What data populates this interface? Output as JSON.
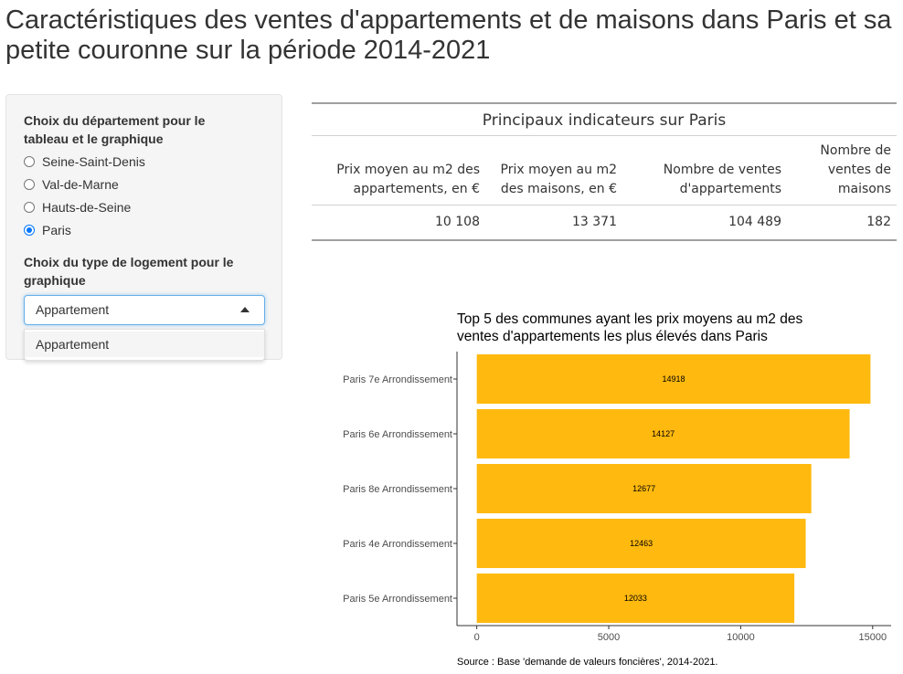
{
  "app": {
    "title": "Caractéristiques des ventes d'appartements et de maisons dans Paris et sa petite couronne sur la période 2014-2021"
  },
  "sidebar": {
    "departement_label": "Choix du département pour le tableau et le graphique",
    "departement_options": [
      {
        "label": "Seine-Saint-Denis",
        "checked": false
      },
      {
        "label": "Val-de-Marne",
        "checked": false
      },
      {
        "label": "Hauts-de-Seine",
        "checked": false
      },
      {
        "label": "Paris",
        "checked": true
      }
    ],
    "logement_label": "Choix du type de logement pour le graphique",
    "logement_selected": "Appartement",
    "logement_dropdown_options": [
      "Appartement"
    ]
  },
  "table": {
    "caption": "Principaux indicateurs sur Paris",
    "headers": [
      "Prix moyen au m2 des appartements, en €",
      "Prix moyen au m2 des maisons, en €",
      "Nombre de ventes d'appartements",
      "Nombre de ventes de maisons"
    ],
    "row": [
      "10 108",
      "13 371",
      "104 489",
      "182"
    ]
  },
  "chart_data": {
    "type": "bar",
    "orientation": "horizontal",
    "title": "Top 5 des communes ayant les prix moyens au m2 des ventes d'appartements les plus élevés dans Paris",
    "title_lines": [
      "Top 5 des communes ayant les prix moyens au m2 des",
      "ventes d'appartements les plus élevés dans Paris"
    ],
    "categories": [
      "Paris 7e Arrondissement",
      "Paris 6e Arrondissement",
      "Paris 8e Arrondissement",
      "Paris 4e Arrondissement",
      "Paris 5e Arrondissement"
    ],
    "values": [
      14918,
      14127,
      12677,
      12463,
      12033
    ],
    "value_labels": [
      "14918",
      "14127",
      "12677",
      "12463",
      "12033"
    ],
    "x_ticks": [
      0,
      5000,
      10000,
      15000
    ],
    "x_tick_labels": [
      "0",
      "5000",
      "10000",
      "15000"
    ],
    "xlim": [
      -750,
      15700
    ],
    "bar_color": "#ffb90f",
    "grid": false,
    "caption": "Source : Base 'demande de valeurs foncières', 2014-2021."
  }
}
